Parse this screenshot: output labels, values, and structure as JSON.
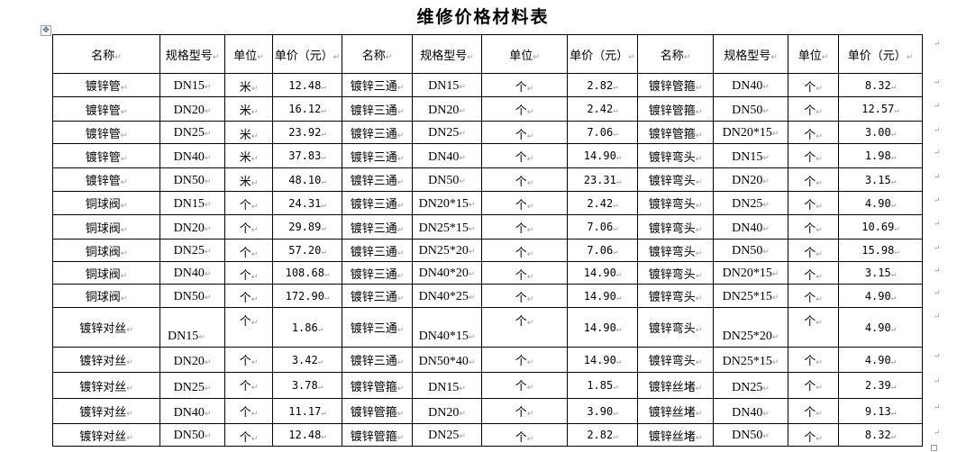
{
  "title": "维修价格材料表",
  "headers": [
    "名称",
    "规格型号",
    "单位",
    "单价（元）",
    "名称",
    "规格型号",
    "单位",
    "单价（元）",
    "名称",
    "规格型号",
    "单位",
    "单价（元）"
  ],
  "rows": [
    [
      "镀锌管",
      "DN15",
      "米",
      "12.48",
      "镀锌三通",
      "DN15",
      "个",
      "2.82",
      "镀锌管箍",
      "DN40",
      "个",
      "8.32"
    ],
    [
      "镀锌管",
      "DN20",
      "米",
      "16.12",
      "镀锌三通",
      "DN20",
      "个",
      "2.42",
      "镀锌管箍",
      "DN50",
      "个",
      "12.57"
    ],
    [
      "镀锌管",
      "DN25",
      "米",
      "23.92",
      "镀锌三通",
      "DN25",
      "个",
      "7.06",
      "镀锌管箍",
      "DN20*15",
      "个",
      "3.00"
    ],
    [
      "镀锌管",
      "DN40",
      "米",
      "37.83",
      "镀锌三通",
      "DN40",
      "个",
      "14.90",
      "镀锌弯头",
      "DN15",
      "个",
      "1.98"
    ],
    [
      "镀锌管",
      "DN50",
      "米",
      "48.10",
      "镀锌三通",
      "DN50",
      "个",
      "23.31",
      "镀锌弯头",
      "DN20",
      "个",
      "3.15"
    ],
    [
      "铜球阀",
      "DN15",
      "个",
      "24.31",
      "镀锌三通",
      "DN20*15",
      "个",
      "2.42",
      "镀锌弯头",
      "DN25",
      "个",
      "4.90"
    ],
    [
      "铜球阀",
      "DN20",
      "个",
      "29.89",
      "镀锌三通",
      "DN25*15",
      "个",
      "7.06",
      "镀锌弯头",
      "DN40",
      "个",
      "10.69"
    ],
    [
      "铜球阀",
      "DN25",
      "个",
      "57.20",
      "镀锌三通",
      "DN25*20",
      "个",
      "7.06",
      "镀锌弯头",
      "DN50",
      "个",
      "15.98"
    ],
    [
      "铜球阀",
      "DN40",
      "个",
      "108.68",
      "镀锌三通",
      "DN40*20",
      "个",
      "14.90",
      "镀锌弯头",
      "DN20*15",
      "个",
      "3.15"
    ],
    [
      "铜球阀",
      "DN50",
      "个",
      "172.90",
      "镀锌三通",
      "DN40*25",
      "个",
      "14.90",
      "镀锌弯头",
      "DN25*15",
      "个",
      "4.90"
    ],
    [
      "镀锌对丝",
      "DN15",
      "个",
      "1.86",
      "镀锌三通",
      "DN40*15",
      "个",
      "14.90",
      "镀锌弯头",
      "DN25*20",
      "个",
      "4.90"
    ],
    [
      "镀锌对丝",
      "DN20",
      "个",
      "3.42",
      "镀锌三通",
      "DN50*40",
      "个",
      "14.90",
      "镀锌弯头",
      "DN25*15",
      "个",
      "4.90"
    ],
    [
      "镀锌对丝",
      "DN25",
      "个",
      "3.78",
      "镀锌管箍",
      "DN15",
      "个",
      "1.85",
      "镀锌丝堵",
      "DN25",
      "个",
      "2.39"
    ],
    [
      "镀锌对丝",
      "DN40",
      "个",
      "11.17",
      "镀锌管箍",
      "DN20",
      "个",
      "3.90",
      "镀锌丝堵",
      "DN40",
      "个",
      "9.13"
    ],
    [
      "镀锌对丝",
      "DN50",
      "个",
      "12.48",
      "镀锌管箍",
      "DN25",
      "个",
      "2.82",
      "镀锌丝堵",
      "DN50",
      "个",
      "8.32"
    ]
  ]
}
